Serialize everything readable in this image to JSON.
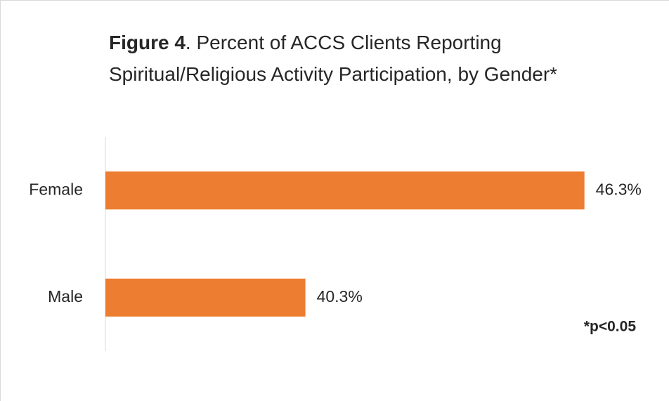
{
  "chart_data": {
    "type": "hbar",
    "title_bold": "Figure 4",
    "title": ". Percent of ACCS Clients Reporting Spiritual/Religious Activity Participation, by Gender*",
    "categories": [
      "Female",
      "Male"
    ],
    "values": [
      46.3,
      40.3
    ],
    "value_labels": [
      "46.3%",
      "40.3%"
    ],
    "color": "#ed7d31",
    "xlim": [
      36,
      47
    ],
    "annotation": "*p<0.05"
  }
}
